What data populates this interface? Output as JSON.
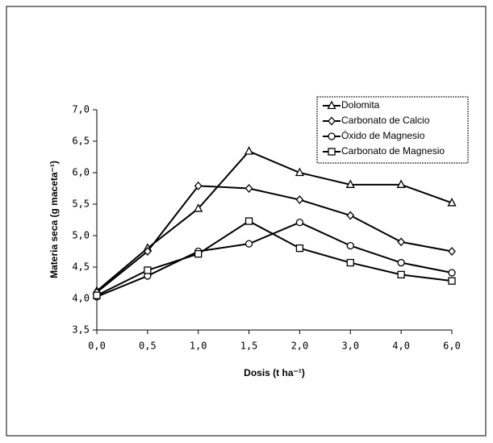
{
  "chart_data": {
    "type": "line",
    "x_label": "Dosis (t ha⁻¹)",
    "y_label": "Materia seca (g maceta⁻¹)",
    "categories": [
      "0,0",
      "0,5",
      "1,0",
      "1,5",
      "2,0",
      "3,0",
      "4,0",
      "6,0"
    ],
    "series": [
      {
        "name": "Dolomita",
        "color": "#000000",
        "marker": "triangle",
        "values": [
          4.12,
          4.8,
          5.43,
          6.34,
          6.0,
          5.81,
          5.81,
          5.52
        ]
      },
      {
        "name": "Carbonato de Calcio",
        "color": "#000000",
        "marker": "diamond",
        "values": [
          4.1,
          4.75,
          5.79,
          5.75,
          5.57,
          5.32,
          4.9,
          4.75
        ]
      },
      {
        "name": "Óxido de Magnesio",
        "color": "#000000",
        "marker": "circle",
        "values": [
          4.03,
          4.36,
          4.75,
          4.87,
          5.21,
          4.84,
          4.57,
          4.41
        ]
      },
      {
        "name": "Carbonato de Magnesio",
        "color": "#000000",
        "marker": "square",
        "values": [
          4.05,
          4.45,
          4.71,
          5.23,
          4.8,
          4.57,
          4.38,
          4.28
        ]
      }
    ],
    "ylim": [
      3.5,
      7.0
    ],
    "yticks": [
      {
        "value": 3.5,
        "label": "3,5"
      },
      {
        "value": 4.0,
        "label": "4,0"
      },
      {
        "value": 4.5,
        "label": "4,5"
      },
      {
        "value": 5.0,
        "label": "5,0"
      },
      {
        "value": 5.5,
        "label": "5,5"
      },
      {
        "value": 6.0,
        "label": "6,0"
      },
      {
        "value": 6.5,
        "label": "6,5"
      },
      {
        "value": 7.0,
        "label": "7,0"
      }
    ],
    "grid": false,
    "legend": "top-right"
  }
}
